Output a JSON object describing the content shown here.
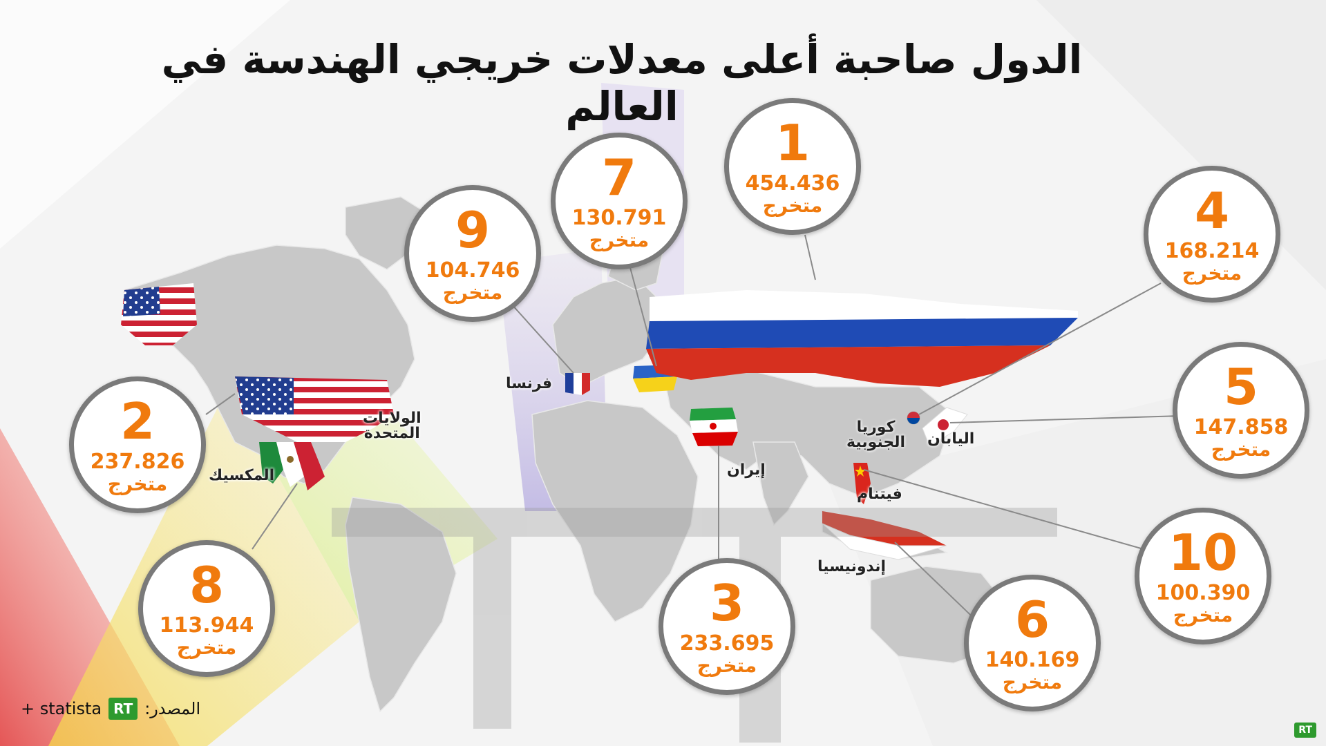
{
  "title": "الدول صاحبة أعلى معدلات خريجي الهندسة في العالم",
  "unit_label": "متخرج",
  "rankings": [
    {
      "rank": "1",
      "value": "454.436",
      "country": "روسيا"
    },
    {
      "rank": "2",
      "value": "237.826",
      "country": "الولايات المتحدة"
    },
    {
      "rank": "3",
      "value": "233.695",
      "country": "إيران"
    },
    {
      "rank": "4",
      "value": "168.214",
      "country": "كوريا الجنوبية"
    },
    {
      "rank": "5",
      "value": "147.858",
      "country": "اليابان"
    },
    {
      "rank": "6",
      "value": "140.169",
      "country": "إندونيسيا"
    },
    {
      "rank": "7",
      "value": "130.791",
      "country": "أوكرانيا"
    },
    {
      "rank": "8",
      "value": "113.944",
      "country": "المكسيك"
    },
    {
      "rank": "9",
      "value": "104.746",
      "country": "فرنسا"
    },
    {
      "rank": "10",
      "value": "100.390",
      "country": "فيتنام"
    }
  ],
  "country_labels": {
    "russia": "روسيا",
    "usa_line1": "الولايات",
    "usa_line2": "المتحدة",
    "mexico": "المكسيك",
    "france": "فرنسا",
    "iran": "إيران",
    "korea_line1": "كوريا",
    "korea_line2": "الجنوبية",
    "japan": "اليابان",
    "vietnam": "فيتنام",
    "indonesia": "إندونيسيا"
  },
  "source": {
    "label": "المصدر:",
    "logo_text": "RT",
    "suffix": "+ statista"
  },
  "corner_logo": "RT",
  "colors": {
    "accent_orange": "#f07a0d",
    "circle_border": "#7a7a7a",
    "land": "#c8c8c8",
    "rt_green": "#2e9a2e"
  }
}
